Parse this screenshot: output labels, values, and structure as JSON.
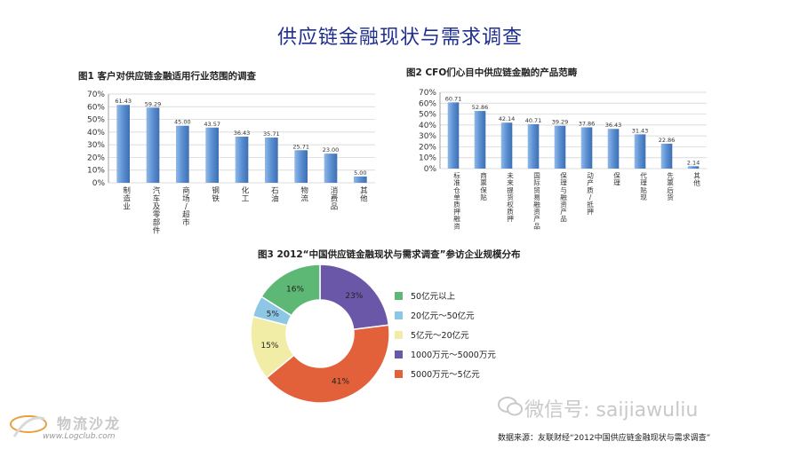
{
  "page_title": "供应链金融现状与需求调查",
  "chart_data": [
    {
      "type": "bar",
      "title": "图1 客户对供应链金融适用行业范围的调查",
      "categories": [
        "制造业",
        "汽车及零部件",
        "商场/超市",
        "钢铁",
        "化工",
        "石油",
        "物流",
        "消费品",
        "其他"
      ],
      "values": [
        61.43,
        59.29,
        45.0,
        43.57,
        36.43,
        35.71,
        25.71,
        23.0,
        5.0
      ],
      "value_labels": [
        "61.43",
        "59.29",
        "45.00",
        "43.57",
        "36.43",
        "35.71",
        "25.71",
        "23.00",
        "5.00"
      ],
      "ylim": [
        0,
        70
      ],
      "yticks": [
        "0%",
        "10%",
        "20%",
        "30%",
        "40%",
        "50%",
        "60%",
        "70%"
      ],
      "grid": true,
      "color": "#5b8fd1"
    },
    {
      "type": "bar",
      "title": "图2 CFO们心目中供应链金融的产品范畴",
      "categories": [
        "标准仓单质押融资",
        "商票保贴",
        "未来提货权质押",
        "国际贸易融资产品",
        "保理与融资产品",
        "动产质/抵押",
        "保理",
        "代理贴现",
        "先票后货",
        "其他"
      ],
      "values": [
        60.71,
        52.86,
        42.14,
        40.71,
        39.29,
        37.86,
        36.43,
        31.43,
        22.86,
        2.14
      ],
      "value_labels": [
        "60.71",
        "52.86",
        "42.14",
        "40.71",
        "39.29",
        "37.86",
        "36.43",
        "31.43",
        "22.86",
        "2.14"
      ],
      "ylim": [
        0,
        70
      ],
      "yticks": [
        "0%",
        "10%",
        "20%",
        "30%",
        "40%",
        "50%",
        "60%",
        "70%"
      ],
      "grid": true,
      "color": "#5b8fd1"
    },
    {
      "type": "pie",
      "title": "图3 2012“中国供应链金融现状与需求调查”参访企业规模分布",
      "slices": [
        {
          "label": "50亿元以上",
          "value": 16,
          "value_label": "16%",
          "color": "#5cb874"
        },
        {
          "label": "20亿元～50亿元",
          "value": 5,
          "value_label": "5%",
          "color": "#8ec7e6"
        },
        {
          "label": "5亿元～20亿元",
          "value": 15,
          "value_label": "15%",
          "color": "#f1eda6"
        },
        {
          "label": "1000万元～5000万元",
          "value": 23,
          "value_label": "23%",
          "color": "#6b57a8"
        },
        {
          "label": "5000万元～5亿元",
          "value": 41,
          "value_label": "41%",
          "color": "#e2613a"
        }
      ],
      "draw_order": [
        3,
        4,
        2,
        1,
        0
      ],
      "legend_position": "right"
    }
  ],
  "footer": {
    "logo_text": "物流沙龙",
    "logo_url": "www.Logclub.com",
    "wechat": "微信号: saijiawuliu",
    "source": "数据来源：友联财经“2012中国供应链金融现状与需求调查”"
  }
}
